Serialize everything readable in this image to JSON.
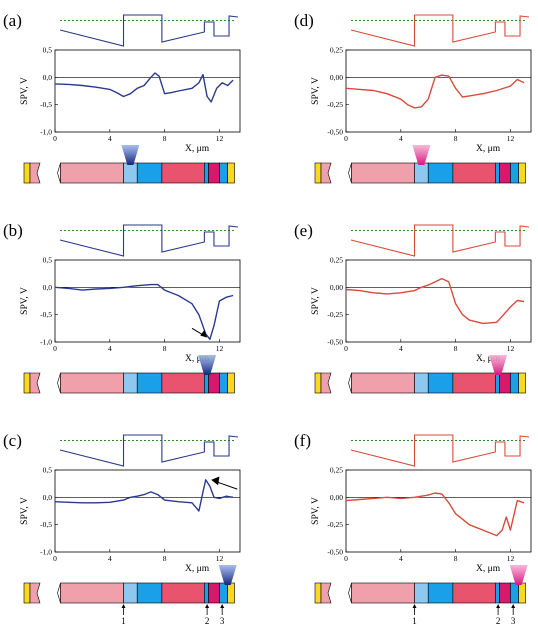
{
  "figure": {
    "panels": [
      {
        "label": "(a)",
        "color": "#2a3a8c",
        "beam": "blue",
        "beam_x": 5.5,
        "yticks": [
          "0,5",
          "0,0",
          "-0,5",
          "-1,0"
        ],
        "yrange": [
          -1.0,
          0.5
        ]
      },
      {
        "label": "(b)",
        "color": "#2a3a8c",
        "beam": "blue",
        "beam_x": 11.1,
        "yticks": [
          "0,5",
          "0,0",
          "-0,5",
          "-1,0"
        ],
        "yrange": [
          -1.0,
          0.5
        ]
      },
      {
        "label": "(c)",
        "color": "#2a3a8c",
        "beam": "blue",
        "beam_x": 12.6,
        "yticks": [
          "0,5",
          "0,0",
          "-0,5",
          "-1,0"
        ],
        "yrange": [
          -1.0,
          0.5
        ]
      },
      {
        "label": "(d)",
        "color": "#d94a3c",
        "beam": "pink",
        "beam_x": 5.5,
        "yticks": [
          "0,25",
          "0,00",
          "-0,25",
          "-0,50"
        ],
        "yrange": [
          -0.5,
          0.25
        ]
      },
      {
        "label": "(e)",
        "color": "#d94a3c",
        "beam": "pink",
        "beam_x": 11.1,
        "yticks": [
          "0,25",
          "0,00",
          "-0,25",
          "-0,50"
        ],
        "yrange": [
          -0.5,
          0.25
        ]
      },
      {
        "label": "(f)",
        "color": "#d94a3c",
        "beam": "pink",
        "beam_x": 12.6,
        "yticks": [
          "0,25",
          "0,00",
          "-0,25",
          "-0,50"
        ],
        "yrange": [
          -0.5,
          0.25
        ]
      }
    ],
    "xticks": [
      "0",
      "4",
      "8",
      "12"
    ],
    "xlabel": "X, μm",
    "ylabel": "SPV, V",
    "markers": [
      "1",
      "2",
      "3"
    ],
    "colors": {
      "blue_curve": "#2a3a8c",
      "red_curve": "#d94a3c",
      "band_ref": "#2e8b2e",
      "layer_pink": "#f0a0aa",
      "layer_lightblue": "#8ec8f0",
      "layer_cyan": "#1aa0e8",
      "layer_red": "#e8546e",
      "layer_magenta": "#d8186c",
      "layer_yellow": "#f8d820"
    }
  },
  "chart_data": [
    {
      "type": "line",
      "title": "(a)",
      "xlabel": "X, μm",
      "ylabel": "SPV, V",
      "xlim": [
        0,
        13.5
      ],
      "ylim": [
        -1.0,
        0.5
      ],
      "x": [
        0,
        1,
        2,
        3,
        4,
        4.5,
        5,
        5.5,
        6,
        6.5,
        7,
        7.3,
        7.6,
        8,
        8.5,
        9,
        10,
        10.5,
        10.8,
        11.1,
        11.4,
        11.8,
        12.2,
        12.6,
        13
      ],
      "y": [
        -0.12,
        -0.13,
        -0.15,
        -0.18,
        -0.22,
        -0.28,
        -0.35,
        -0.3,
        -0.2,
        -0.15,
        0.0,
        0.08,
        0.02,
        -0.3,
        -0.28,
        -0.25,
        -0.2,
        -0.1,
        0.05,
        -0.35,
        -0.45,
        -0.2,
        -0.1,
        -0.15,
        -0.05
      ]
    },
    {
      "type": "line",
      "title": "(b)",
      "xlabel": "X, μm",
      "ylabel": "SPV, V",
      "xlim": [
        0,
        13.5
      ],
      "ylim": [
        -1.0,
        0.5
      ],
      "x": [
        0,
        1,
        2,
        3,
        4,
        5,
        6,
        7,
        7.5,
        8,
        9,
        10,
        10.5,
        11,
        11.3,
        11.6,
        12,
        12.5,
        13
      ],
      "y": [
        0.0,
        -0.02,
        -0.05,
        -0.03,
        -0.02,
        0.0,
        0.03,
        0.05,
        0.05,
        -0.05,
        -0.15,
        -0.3,
        -0.5,
        -0.85,
        -0.95,
        -0.7,
        -0.25,
        -0.18,
        -0.15
      ]
    },
    {
      "type": "line",
      "title": "(c)",
      "xlabel": "X, μm",
      "ylabel": "SPV, V",
      "xlim": [
        0,
        13.5
      ],
      "ylim": [
        -1.0,
        0.5
      ],
      "x": [
        0,
        1,
        2,
        3,
        4,
        5,
        5.5,
        6,
        6.5,
        7,
        7.5,
        8,
        9,
        10,
        10.5,
        10.8,
        11,
        11.3,
        11.6,
        12,
        12.5,
        13
      ],
      "y": [
        -0.08,
        -0.09,
        -0.1,
        -0.1,
        -0.09,
        -0.05,
        0.0,
        0.02,
        0.05,
        0.1,
        0.05,
        -0.05,
        -0.08,
        -0.1,
        -0.25,
        0.1,
        0.32,
        0.2,
        0.0,
        -0.02,
        0.02,
        0.0
      ]
    },
    {
      "type": "line",
      "title": "(d)",
      "xlabel": "X, μm",
      "ylabel": "SPV, V",
      "xlim": [
        0,
        13.5
      ],
      "ylim": [
        -0.5,
        0.25
      ],
      "x": [
        0,
        1,
        2,
        3,
        4,
        4.5,
        5,
        5.5,
        6,
        6.5,
        7,
        7.5,
        8,
        8.5,
        9,
        10,
        11,
        12,
        12.5,
        13
      ],
      "y": [
        -0.1,
        -0.11,
        -0.12,
        -0.15,
        -0.2,
        -0.25,
        -0.28,
        -0.27,
        -0.2,
        0.0,
        0.02,
        0.01,
        -0.1,
        -0.18,
        -0.17,
        -0.15,
        -0.12,
        -0.08,
        -0.02,
        -0.05
      ]
    },
    {
      "type": "line",
      "title": "(e)",
      "xlabel": "X, μm",
      "ylabel": "SPV, V",
      "xlim": [
        0,
        13.5
      ],
      "ylim": [
        -0.5,
        0.25
      ],
      "x": [
        0,
        1,
        2,
        3,
        4,
        5,
        5.5,
        6,
        6.5,
        7,
        7.5,
        8,
        8.5,
        9,
        10,
        11,
        11.5,
        12,
        12.5,
        13
      ],
      "y": [
        -0.02,
        -0.03,
        -0.05,
        -0.06,
        -0.05,
        -0.03,
        0.0,
        0.02,
        0.05,
        0.08,
        0.05,
        -0.15,
        -0.25,
        -0.3,
        -0.33,
        -0.32,
        -0.25,
        -0.18,
        -0.12,
        -0.13
      ]
    },
    {
      "type": "line",
      "title": "(f)",
      "xlabel": "X, μm",
      "ylabel": "SPV, V",
      "xlim": [
        0,
        13.5
      ],
      "ylim": [
        -0.5,
        0.25
      ],
      "x": [
        0,
        1,
        2,
        3,
        4,
        5,
        6,
        6.5,
        7,
        7.5,
        8,
        8.5,
        9,
        10,
        11,
        11.4,
        11.7,
        12,
        12.5,
        13
      ],
      "y": [
        -0.03,
        -0.02,
        -0.01,
        0.0,
        -0.01,
        0.0,
        0.02,
        0.04,
        0.03,
        -0.05,
        -0.15,
        -0.2,
        -0.25,
        -0.3,
        -0.35,
        -0.3,
        -0.18,
        -0.3,
        -0.03,
        -0.05
      ]
    }
  ]
}
